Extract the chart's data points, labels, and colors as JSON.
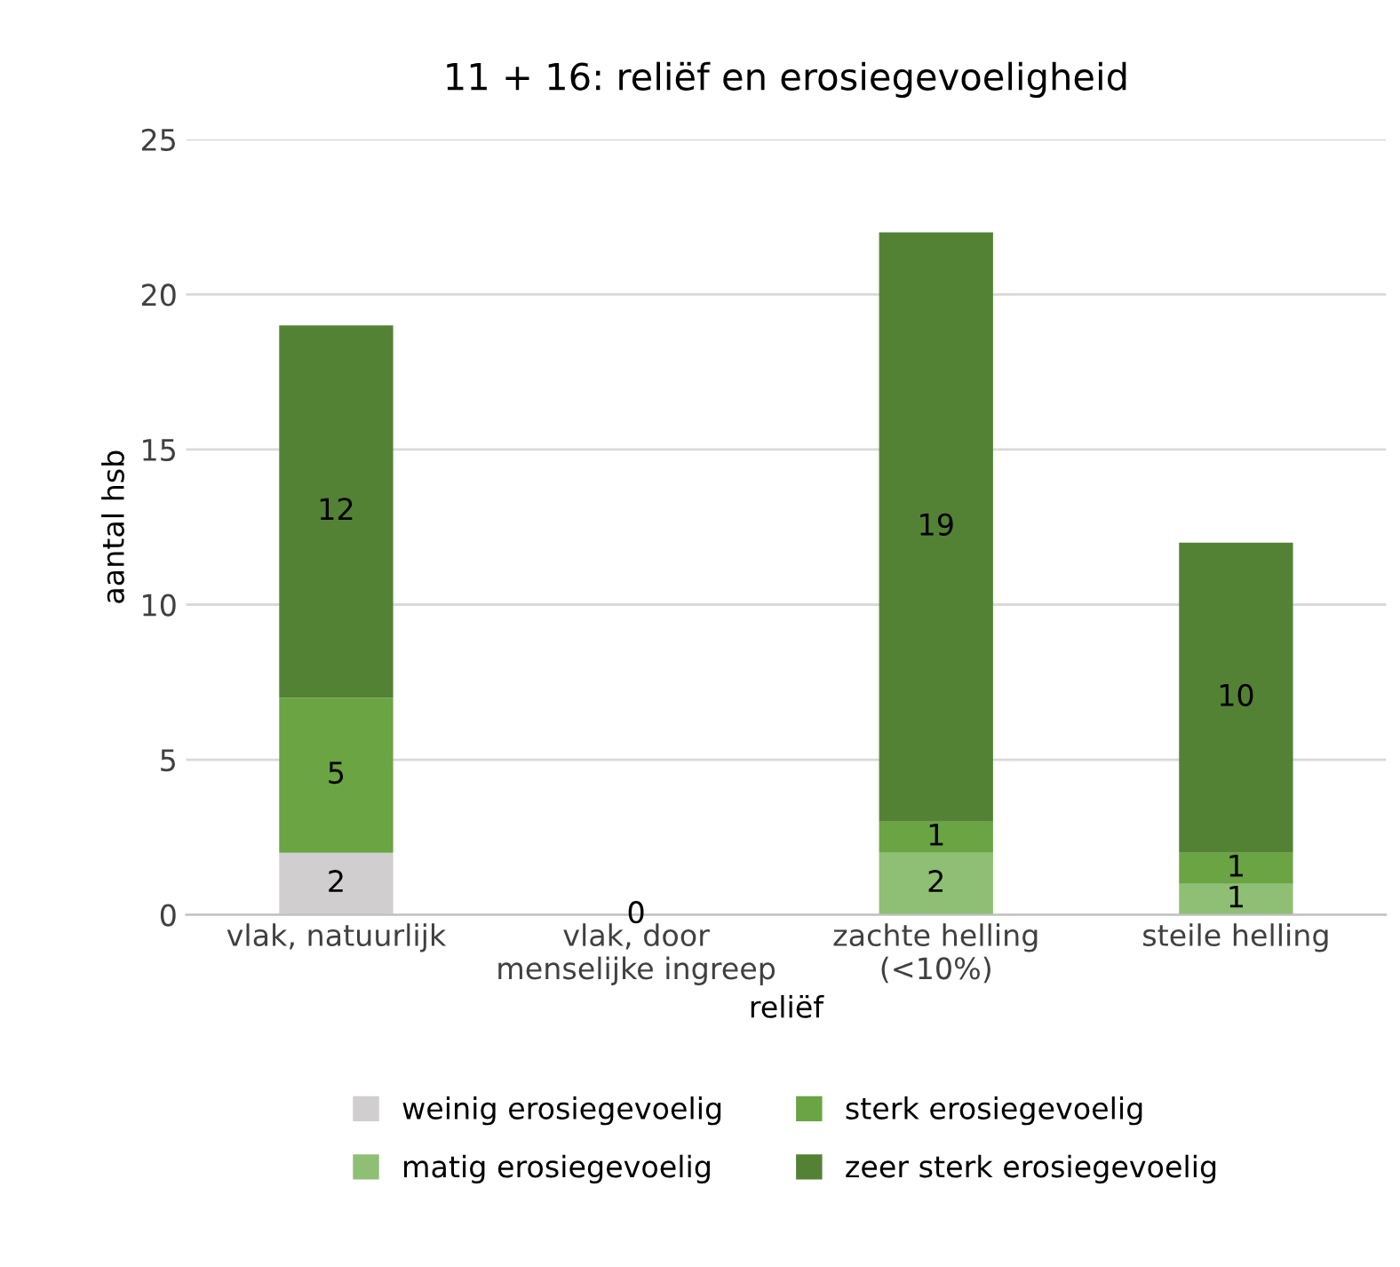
{
  "chart_data": {
    "type": "bar",
    "title": "11 + 16: reliëf en erosiegevoeligheid",
    "xlabel": "reliëf",
    "ylabel": "aantal hsb",
    "categories": [
      "vlak, natuurlijk",
      "vlak, door\nmenselijke ingreep",
      "zachte helling\n(<10%)",
      "steile helling"
    ],
    "stacked": true,
    "ylim": [
      0,
      25
    ],
    "yticks": [
      0,
      5,
      10,
      15,
      20,
      25
    ],
    "grid": "y",
    "legend": "bottom",
    "series": [
      {
        "name": "weinig erosiegevoelig",
        "color": "#d0cece",
        "values": [
          2,
          0,
          null,
          null
        ],
        "value_labels": [
          "2",
          "0",
          null,
          null
        ]
      },
      {
        "name": "matig erosiegevoelig",
        "color": "#8fbf74",
        "values": [
          null,
          null,
          2,
          1
        ],
        "value_labels": [
          null,
          null,
          "2",
          "1"
        ]
      },
      {
        "name": "sterk erosiegevoelig",
        "color": "#6aa443",
        "values": [
          5,
          null,
          1,
          1
        ],
        "value_labels": [
          "5",
          null,
          "1",
          "1"
        ]
      },
      {
        "name": "zeer sterk erosiegevoelig",
        "color": "#548235",
        "values": [
          12,
          null,
          19,
          10
        ],
        "value_labels": [
          "12",
          null,
          "19",
          "10"
        ]
      }
    ]
  }
}
